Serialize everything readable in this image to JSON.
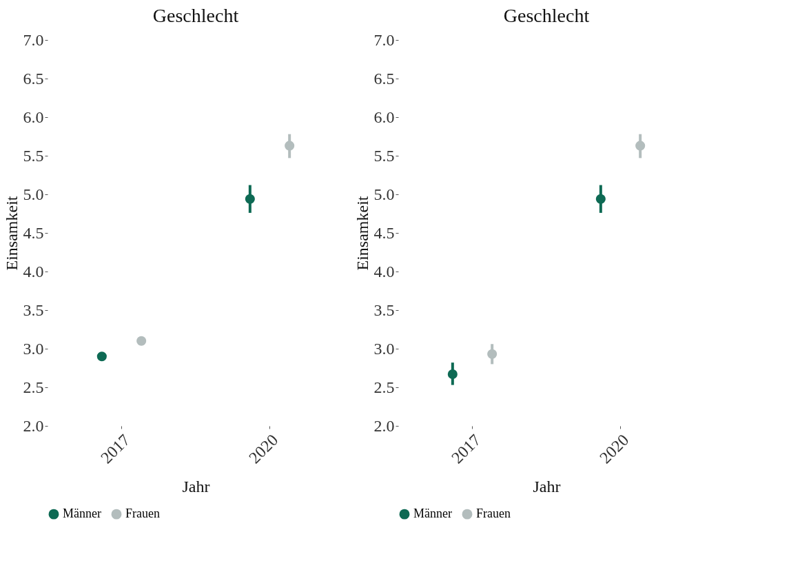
{
  "chart_data": [
    {
      "type": "scatter",
      "title": "Geschlecht",
      "xlabel": "Jahr",
      "ylabel": "Einsamkeit",
      "categories": [
        "2017",
        "2020"
      ],
      "series": [
        {
          "name": "Männer",
          "color": "#0e6a54",
          "values": [
            2.9,
            4.94
          ],
          "errors": [
            null,
            [
              4.76,
              5.12
            ]
          ]
        },
        {
          "name": "Frauen",
          "color": "#b3bdbd",
          "values": [
            3.1,
            5.63
          ],
          "errors": [
            null,
            [
              5.47,
              5.78
            ]
          ]
        }
      ],
      "ylim": [
        2,
        7
      ],
      "yticks": [
        {
          "value": 2,
          "label": "2.0"
        },
        2.5,
        {
          "value": 3,
          "label": "3.0"
        },
        3.5,
        {
          "value": 4,
          "label": "4.0"
        },
        4.5,
        {
          "value": 5,
          "label": "5.0"
        },
        5.5,
        {
          "value": 6,
          "label": "6.0"
        },
        6.5,
        {
          "value": 7,
          "label": "7.0"
        }
      ],
      "marker": "circle",
      "legend": "bottom"
    },
    {
      "type": "scatter",
      "title": "Geschlecht",
      "xlabel": "Jahr",
      "ylabel": "Einsamkeit",
      "categories": [
        "2017",
        "2020"
      ],
      "series": [
        {
          "name": "Männer",
          "color": "#0e6a54",
          "values": [
            2.67,
            4.94
          ],
          "errors": [
            [
              2.53,
              2.82
            ],
            [
              4.76,
              5.12
            ]
          ]
        },
        {
          "name": "Frauen",
          "color": "#b3bdbd",
          "values": [
            2.93,
            5.63
          ],
          "errors": [
            [
              2.8,
              3.06
            ],
            [
              5.47,
              5.78
            ]
          ]
        }
      ],
      "ylim": [
        2,
        7
      ],
      "yticks": [
        {
          "value": 2,
          "label": "2.0"
        },
        2.5,
        {
          "value": 3,
          "label": "3.0"
        },
        3.5,
        {
          "value": 4,
          "label": "4.0"
        },
        4.5,
        {
          "value": 5,
          "label": "5.0"
        },
        5.5,
        {
          "value": 6,
          "label": "6.0"
        },
        6.5,
        {
          "value": 7,
          "label": "7.0"
        }
      ],
      "marker": "circle",
      "legend": "bottom"
    }
  ]
}
